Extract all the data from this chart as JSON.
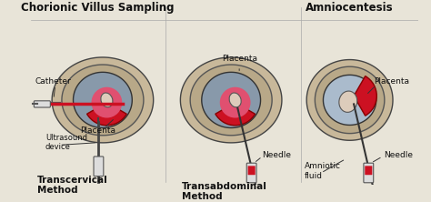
{
  "title": "",
  "background_color": "#e8e4d8",
  "fig_width": 4.74,
  "fig_height": 2.22,
  "dpi": 100,
  "labels": {
    "transcervical": "Transcervical\nMethod",
    "transabdominal": "Transabdominal\nMethod",
    "cvs_caption": "Chorionic Villus Sampling",
    "amniocentesis_caption": "Amniocentesis",
    "ultrasound": "Ultrasound\ndevice",
    "placenta1": "Placenta",
    "catheter": "Catheter",
    "needle1": "Needle",
    "placenta2": "Placenta",
    "amniotic_fluid": "Amniotic\nfluid",
    "needle2": "Needle",
    "placenta3": "Placenta"
  },
  "label_fontsize": 6.5,
  "caption_fontsize": 8.5,
  "header_fontsize": 7.5,
  "colors": {
    "red": "#cc1122",
    "pink": "#e05070",
    "outline": "#222222",
    "bg": "#e8e4d8",
    "white": "#ffffff",
    "light_pink": "#e8a0b0"
  }
}
